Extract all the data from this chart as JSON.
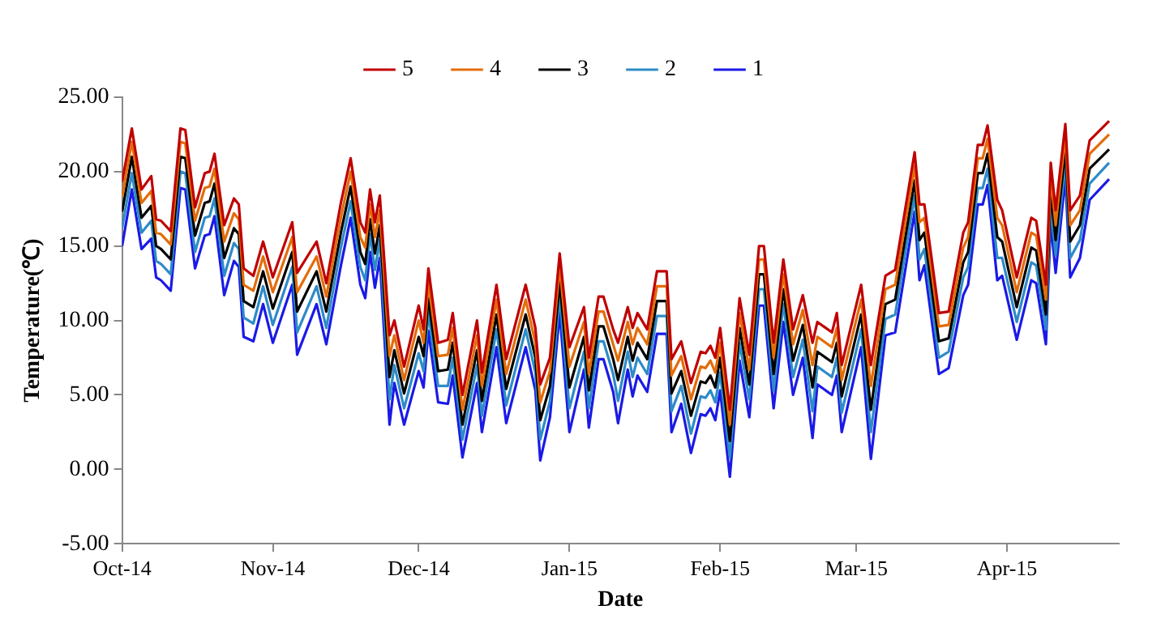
{
  "chart_data": {
    "type": "line",
    "xlabel": "Date",
    "ylabel": "Temperature(℃)",
    "x": [
      "2014-10-01",
      "2014-10-03",
      "2014-10-05",
      "2014-10-07",
      "2014-10-08",
      "2014-10-09",
      "2014-10-11",
      "2014-10-13",
      "2014-10-14",
      "2014-10-16",
      "2014-10-18",
      "2014-10-19",
      "2014-10-20",
      "2014-10-22",
      "2014-10-24",
      "2014-10-25",
      "2014-10-26",
      "2014-10-28",
      "2014-10-30",
      "2014-11-01",
      "2014-11-05",
      "2014-11-06",
      "2014-11-10",
      "2014-11-12",
      "2014-11-15",
      "2014-11-17",
      "2014-11-19",
      "2014-11-20",
      "2014-11-21",
      "2014-11-22",
      "2014-11-23",
      "2014-11-25",
      "2014-11-26",
      "2014-11-28",
      "2014-12-01",
      "2014-12-02",
      "2014-12-03",
      "2014-12-05",
      "2014-12-07",
      "2014-12-08",
      "2014-12-10",
      "2014-12-13",
      "2014-12-14",
      "2014-12-17",
      "2014-12-19",
      "2014-12-23",
      "2014-12-25",
      "2014-12-26",
      "2014-12-28",
      "2014-12-30",
      "2015-01-01",
      "2015-01-04",
      "2015-01-05",
      "2015-01-07",
      "2015-01-08",
      "2015-01-10",
      "2015-01-11",
      "2015-01-13",
      "2015-01-14",
      "2015-01-15",
      "2015-01-17",
      "2015-01-19",
      "2015-01-21",
      "2015-01-22",
      "2015-01-24",
      "2015-01-26",
      "2015-01-28",
      "2015-01-29",
      "2015-01-30",
      "2015-01-31",
      "2015-02-01",
      "2015-02-03",
      "2015-02-05",
      "2015-02-07",
      "2015-02-09",
      "2015-02-10",
      "2015-02-12",
      "2015-02-14",
      "2015-02-16",
      "2015-02-18",
      "2015-02-20",
      "2015-02-21",
      "2015-02-24",
      "2015-02-25",
      "2015-02-26",
      "2015-03-02",
      "2015-03-04",
      "2015-03-07",
      "2015-03-09",
      "2015-03-13",
      "2015-03-14",
      "2015-03-15",
      "2015-03-18",
      "2015-03-20",
      "2015-03-23",
      "2015-03-24",
      "2015-03-26",
      "2015-03-27",
      "2015-03-28",
      "2015-03-30",
      "2015-03-31",
      "2015-04-03",
      "2015-04-06",
      "2015-04-07",
      "2015-04-09",
      "2015-04-10",
      "2015-04-11",
      "2015-04-13",
      "2015-04-14",
      "2015-04-16",
      "2015-04-18",
      "2015-04-22"
    ],
    "series": [
      {
        "name": "5",
        "color": "#c00000",
        "values": [
          19.3,
          22.9,
          18.8,
          19.7,
          16.8,
          16.7,
          16.0,
          22.9,
          22.8,
          17.6,
          19.9,
          20.0,
          21.2,
          16.4,
          18.2,
          17.8,
          13.5,
          13.0,
          15.3,
          12.9,
          16.6,
          13.2,
          15.3,
          12.5,
          17.9,
          20.9,
          16.6,
          15.9,
          18.8,
          16.6,
          18.4,
          9.0,
          10.0,
          6.9,
          11.0,
          9.4,
          13.5,
          8.5,
          8.7,
          10.5,
          5.0,
          10.0,
          6.5,
          12.4,
          7.4,
          12.4,
          9.5,
          5.7,
          7.5,
          14.5,
          8.2,
          10.9,
          7.5,
          11.6,
          11.6,
          9.4,
          8.5,
          10.9,
          9.5,
          10.5,
          9.4,
          13.3,
          13.3,
          7.4,
          8.6,
          5.8,
          7.9,
          7.8,
          8.3,
          7.5,
          9.5,
          4.0,
          11.5,
          7.7,
          15.0,
          15.0,
          8.5,
          14.1,
          9.4,
          11.7,
          8.5,
          9.9,
          9.2,
          10.5,
          7.0,
          12.4,
          7.0,
          13.0,
          13.4,
          21.3,
          17.8,
          17.8,
          10.5,
          10.6,
          15.9,
          16.6,
          21.8,
          21.8,
          23.1,
          18.1,
          17.4,
          12.9,
          16.9,
          16.7,
          12.4,
          20.6,
          17.4,
          23.2,
          17.4,
          18.4,
          22.1,
          23.4
        ]
      },
      {
        "name": "4",
        "color": "#e36c0a",
        "values": [
          18.3,
          22.0,
          17.9,
          18.7,
          15.9,
          15.8,
          15.1,
          22.0,
          21.9,
          16.7,
          18.9,
          19.0,
          20.2,
          15.3,
          17.2,
          16.8,
          12.4,
          12.0,
          14.3,
          11.9,
          15.6,
          11.9,
          14.3,
          11.6,
          16.9,
          20.0,
          15.6,
          14.9,
          17.8,
          15.6,
          17.4,
          7.6,
          9.0,
          6.0,
          10.0,
          8.5,
          12.5,
          7.6,
          7.7,
          9.5,
          4.0,
          9.0,
          5.6,
          11.4,
          6.4,
          11.4,
          8.5,
          4.5,
          6.6,
          13.6,
          6.9,
          9.9,
          6.4,
          10.6,
          10.6,
          8.4,
          7.3,
          9.9,
          8.4,
          9.5,
          8.4,
          12.3,
          12.3,
          6.3,
          7.6,
          4.7,
          6.9,
          6.8,
          7.3,
          6.5,
          8.5,
          3.0,
          10.5,
          6.7,
          14.1,
          14.1,
          7.5,
          13.1,
          8.4,
          10.7,
          7.0,
          8.9,
          8.2,
          9.5,
          6.0,
          11.4,
          5.6,
          12.1,
          12.4,
          20.4,
          16.6,
          16.9,
          9.6,
          9.7,
          14.9,
          15.6,
          20.9,
          20.9,
          22.2,
          16.9,
          16.4,
          11.9,
          15.9,
          15.7,
          11.4,
          19.7,
          16.4,
          22.4,
          16.4,
          17.4,
          21.2,
          22.5
        ]
      },
      {
        "name": "3",
        "color": "#000000",
        "values": [
          17.3,
          21.0,
          16.9,
          17.7,
          15.0,
          14.8,
          14.1,
          21.0,
          20.9,
          15.7,
          17.9,
          18.0,
          19.2,
          14.2,
          16.2,
          15.8,
          11.3,
          10.9,
          13.3,
          10.8,
          14.6,
          10.6,
          13.3,
          10.6,
          15.9,
          19.0,
          14.6,
          13.8,
          16.8,
          14.5,
          16.4,
          6.2,
          8.0,
          5.1,
          8.9,
          7.6,
          11.5,
          6.6,
          6.7,
          8.5,
          3.0,
          8.0,
          4.6,
          10.4,
          5.4,
          10.4,
          7.5,
          3.3,
          5.6,
          12.6,
          5.5,
          8.9,
          5.3,
          9.6,
          9.6,
          7.4,
          6.0,
          8.9,
          7.3,
          8.5,
          7.4,
          11.3,
          11.3,
          5.1,
          6.6,
          3.6,
          5.9,
          5.8,
          6.3,
          5.5,
          7.5,
          1.9,
          9.5,
          5.7,
          13.1,
          13.1,
          6.4,
          12.1,
          7.3,
          9.7,
          5.5,
          7.9,
          7.2,
          8.5,
          4.9,
          10.4,
          4.0,
          11.1,
          11.4,
          19.4,
          15.4,
          15.9,
          8.6,
          8.8,
          13.9,
          14.6,
          19.9,
          19.9,
          21.2,
          15.6,
          15.3,
          10.9,
          14.9,
          14.7,
          10.4,
          18.7,
          15.4,
          21.5,
          15.3,
          16.4,
          20.2,
          21.5
        ]
      },
      {
        "name": "2",
        "color": "#2e8bc8",
        "values": [
          16.2,
          19.9,
          15.9,
          16.7,
          14.0,
          13.8,
          13.1,
          20.0,
          19.9,
          14.6,
          16.9,
          17.0,
          18.2,
          13.0,
          15.2,
          14.8,
          10.2,
          9.8,
          12.3,
          9.7,
          13.6,
          9.2,
          12.3,
          9.5,
          14.9,
          18.0,
          13.6,
          12.7,
          15.8,
          13.4,
          15.4,
          4.7,
          7.0,
          4.1,
          7.8,
          6.6,
          10.5,
          5.6,
          5.6,
          7.5,
          2.0,
          7.0,
          3.6,
          9.4,
          4.3,
          9.4,
          6.5,
          2.0,
          4.6,
          11.6,
          4.1,
          7.9,
          4.1,
          8.6,
          8.6,
          6.4,
          4.6,
          7.9,
          6.2,
          7.5,
          6.4,
          10.3,
          10.3,
          3.9,
          5.6,
          2.4,
          4.9,
          4.8,
          5.3,
          4.5,
          6.5,
          0.8,
          8.5,
          4.7,
          12.1,
          12.1,
          5.3,
          11.1,
          6.2,
          8.7,
          3.9,
          6.9,
          6.2,
          7.5,
          3.8,
          9.4,
          2.5,
          10.1,
          10.4,
          18.4,
          14.1,
          14.8,
          7.5,
          7.9,
          12.9,
          13.6,
          18.9,
          18.9,
          20.2,
          14.2,
          14.2,
          9.9,
          13.9,
          13.7,
          9.4,
          17.7,
          14.4,
          20.6,
          14.2,
          15.4,
          19.2,
          20.6
        ]
      },
      {
        "name": "1",
        "color": "#1a1ae6",
        "values": [
          15.0,
          18.8,
          14.8,
          15.5,
          12.9,
          12.7,
          12.0,
          18.9,
          18.8,
          13.5,
          15.7,
          15.8,
          17.0,
          11.7,
          14.0,
          13.6,
          8.9,
          8.6,
          11.1,
          8.5,
          12.4,
          7.7,
          11.1,
          8.4,
          13.7,
          16.9,
          12.4,
          11.5,
          14.6,
          12.2,
          14.2,
          3.0,
          5.8,
          3.0,
          6.6,
          5.5,
          9.3,
          4.5,
          4.4,
          6.3,
          0.8,
          5.8,
          2.5,
          8.2,
          3.1,
          8.2,
          5.3,
          0.6,
          3.5,
          10.5,
          2.5,
          6.7,
          2.8,
          7.4,
          7.4,
          5.2,
          3.1,
          6.7,
          4.9,
          6.3,
          5.2,
          9.1,
          9.1,
          2.5,
          4.4,
          1.1,
          3.7,
          3.6,
          4.1,
          3.3,
          5.3,
          -0.5,
          7.3,
          3.5,
          11.0,
          11.0,
          4.1,
          9.9,
          5.0,
          7.5,
          2.1,
          5.7,
          5.0,
          6.3,
          2.5,
          8.2,
          0.7,
          9.0,
          9.2,
          17.3,
          12.7,
          13.7,
          6.4,
          6.8,
          11.7,
          12.4,
          17.8,
          17.8,
          19.1,
          12.7,
          13.0,
          8.7,
          12.7,
          12.5,
          8.4,
          16.6,
          13.2,
          19.6,
          12.9,
          14.2,
          18.1,
          19.5
        ]
      }
    ],
    "xlim": [
      "2014-10-01",
      "2015-04-24"
    ],
    "xticks": [
      {
        "value": "2014-10-01",
        "label": "Oct-14"
      },
      {
        "value": "2014-11-01",
        "label": "Nov-14"
      },
      {
        "value": "2014-12-01",
        "label": "Dec-14"
      },
      {
        "value": "2015-01-01",
        "label": "Jan-15"
      },
      {
        "value": "2015-02-01",
        "label": "Feb-15"
      },
      {
        "value": "2015-03-01",
        "label": "Mar-15"
      },
      {
        "value": "2015-04-01",
        "label": "Apr-15"
      }
    ],
    "ylim": [
      -5,
      25
    ],
    "yticks": [
      {
        "value": -5,
        "label": "-5.00"
      },
      {
        "value": 0,
        "label": "0.00"
      },
      {
        "value": 5,
        "label": "5.00"
      },
      {
        "value": 10,
        "label": "10.00"
      },
      {
        "value": 15,
        "label": "15.00"
      },
      {
        "value": 20,
        "label": "20.00"
      },
      {
        "value": 25,
        "label": "25.00"
      }
    ],
    "grid": false,
    "legend": "top",
    "marker": "none",
    "line_style": "solid"
  }
}
